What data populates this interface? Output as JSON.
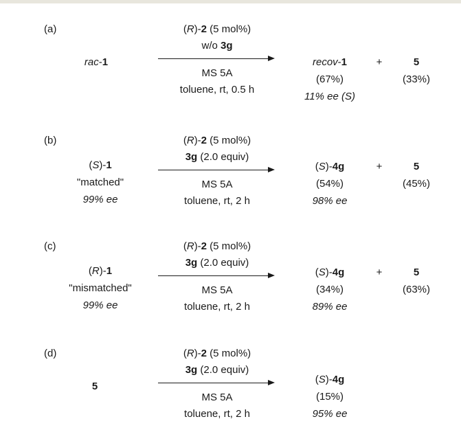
{
  "schemes": [
    {
      "label": "(a)",
      "substrate": {
        "lines": [
          [
            {
              "t": "rac",
              "i": 1
            },
            {
              "t": "-"
            },
            {
              "t": "1",
              "b": 1
            }
          ]
        ]
      },
      "above": [
        [
          {
            "t": "("
          },
          {
            "t": "R",
            "i": 1
          },
          {
            "t": ")-"
          },
          {
            "t": "2",
            "b": 1
          },
          {
            "t": " (5 mol%)"
          }
        ],
        [
          {
            "t": "w/o "
          },
          {
            "t": "3g",
            "b": 1
          }
        ]
      ],
      "below": [
        [
          {
            "t": "MS 5A"
          }
        ],
        [
          {
            "t": "toluene, rt, 0.5 h"
          }
        ]
      ],
      "product": [
        [
          {
            "t": "recov",
            "i": 1
          },
          {
            "t": "-"
          },
          {
            "t": "1",
            "b": 1
          }
        ],
        [
          {
            "t": "(67%)"
          }
        ],
        [
          {
            "t": "11% ee (S)",
            "i": 1
          }
        ]
      ],
      "plus": "+",
      "byproduct": [
        [
          {
            "t": "5",
            "b": 1
          }
        ],
        [
          {
            "t": "(33%)"
          }
        ]
      ]
    },
    {
      "label": "(b)",
      "substrate": {
        "lines": [
          [
            {
              "t": "("
            },
            {
              "t": "S",
              "i": 1
            },
            {
              "t": ")-"
            },
            {
              "t": "1",
              "b": 1
            }
          ],
          [
            {
              "t": "\"matched\""
            }
          ],
          [
            {
              "t": "99% ee",
              "i": 1
            }
          ]
        ]
      },
      "above": [
        [
          {
            "t": "("
          },
          {
            "t": "R",
            "i": 1
          },
          {
            "t": ")-"
          },
          {
            "t": "2",
            "b": 1
          },
          {
            "t": " (5 mol%)"
          }
        ],
        [
          {
            "t": "3g",
            "b": 1
          },
          {
            "t": " (2.0 equiv)"
          }
        ]
      ],
      "below": [
        [
          {
            "t": "MS 5A"
          }
        ],
        [
          {
            "t": "toluene, rt, 2 h"
          }
        ]
      ],
      "product": [
        [
          {
            "t": "("
          },
          {
            "t": "S",
            "i": 1
          },
          {
            "t": ")-"
          },
          {
            "t": "4g",
            "b": 1
          }
        ],
        [
          {
            "t": "(54%)"
          }
        ],
        [
          {
            "t": "98% ee",
            "i": 1
          }
        ]
      ],
      "plus": "+",
      "byproduct": [
        [
          {
            "t": "5",
            "b": 1
          }
        ],
        [
          {
            "t": "(45%)"
          }
        ]
      ]
    },
    {
      "label": "(c)",
      "substrate": {
        "lines": [
          [
            {
              "t": "("
            },
            {
              "t": "R",
              "i": 1
            },
            {
              "t": ")-"
            },
            {
              "t": "1",
              "b": 1
            }
          ],
          [
            {
              "t": "\"mismatched\""
            }
          ],
          [
            {
              "t": "99% ee",
              "i": 1
            }
          ]
        ]
      },
      "above": [
        [
          {
            "t": "("
          },
          {
            "t": "R",
            "i": 1
          },
          {
            "t": ")-"
          },
          {
            "t": "2",
            "b": 1
          },
          {
            "t": " (5 mol%)"
          }
        ],
        [
          {
            "t": "3g",
            "b": 1
          },
          {
            "t": " (2.0 equiv)"
          }
        ]
      ],
      "below": [
        [
          {
            "t": "MS 5A"
          }
        ],
        [
          {
            "t": "toluene, rt, 2 h"
          }
        ]
      ],
      "product": [
        [
          {
            "t": "("
          },
          {
            "t": "S",
            "i": 1
          },
          {
            "t": ")-"
          },
          {
            "t": "4g",
            "b": 1
          }
        ],
        [
          {
            "t": "(34%)"
          }
        ],
        [
          {
            "t": "89% ee",
            "i": 1
          }
        ]
      ],
      "plus": "+",
      "byproduct": [
        [
          {
            "t": "5",
            "b": 1
          }
        ],
        [
          {
            "t": "(63%)"
          }
        ]
      ]
    },
    {
      "label": "(d)",
      "substrate": {
        "lines": [
          [
            {
              "t": "5",
              "b": 1
            }
          ]
        ]
      },
      "above": [
        [
          {
            "t": "("
          },
          {
            "t": "R",
            "i": 1
          },
          {
            "t": ")-"
          },
          {
            "t": "2",
            "b": 1
          },
          {
            "t": " (5 mol%)"
          }
        ],
        [
          {
            "t": "3g",
            "b": 1
          },
          {
            "t": " (2.0 equiv)"
          }
        ]
      ],
      "below": [
        [
          {
            "t": "MS 5A"
          }
        ],
        [
          {
            "t": "toluene, rt, 2 h"
          }
        ]
      ],
      "product": [
        [
          {
            "t": "("
          },
          {
            "t": "S",
            "i": 1
          },
          {
            "t": ")-"
          },
          {
            "t": "4g",
            "b": 1
          }
        ],
        [
          {
            "t": "(15%)"
          }
        ],
        [
          {
            "t": "95% ee",
            "i": 1
          }
        ]
      ],
      "plus": "",
      "byproduct": []
    }
  ]
}
